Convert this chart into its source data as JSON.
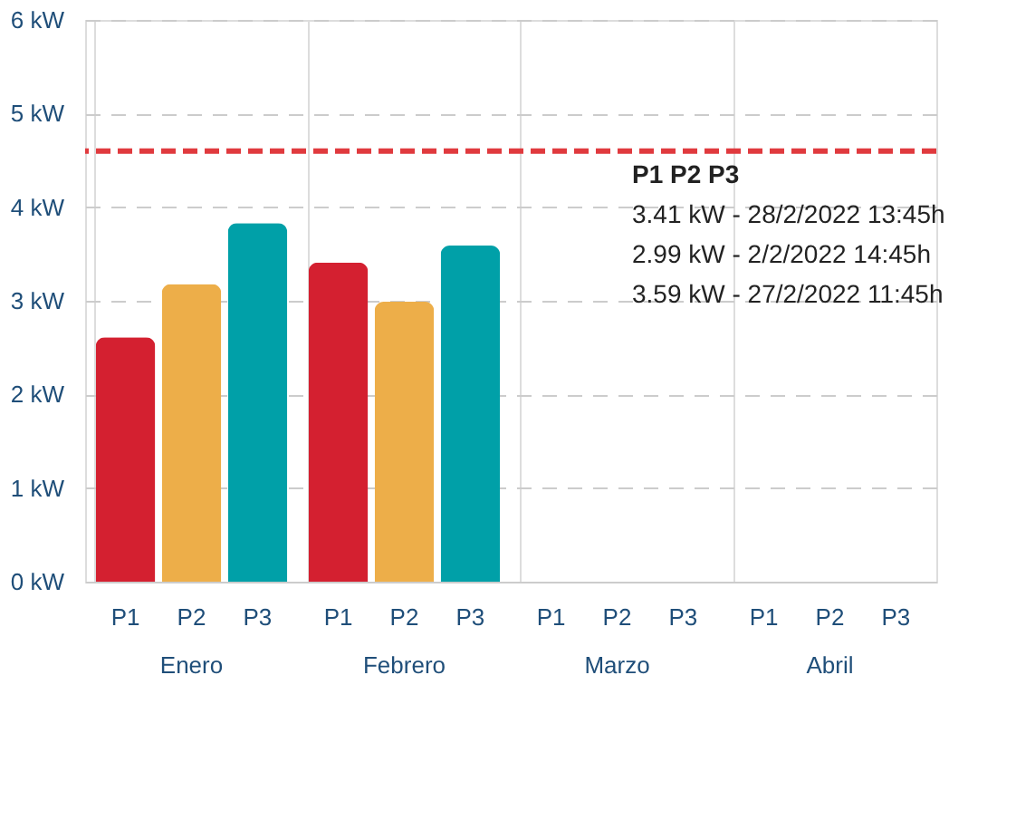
{
  "chart_data": {
    "type": "bar",
    "categories": [
      "Enero",
      "Febrero",
      "Marzo",
      "Abril"
    ],
    "series": [
      {
        "name": "P1",
        "color": "#d42030",
        "values": [
          2.61,
          3.41,
          null,
          null
        ]
      },
      {
        "name": "P2",
        "color": "#edae49",
        "values": [
          3.18,
          2.99,
          null,
          null
        ]
      },
      {
        "name": "P3",
        "color": "#00a0a8",
        "values": [
          3.83,
          3.59,
          null,
          null
        ]
      }
    ],
    "ylim": [
      0,
      6
    ],
    "yticks": [
      {
        "value": 0,
        "label": "0 kW"
      },
      {
        "value": 1,
        "label": "1 kW"
      },
      {
        "value": 2,
        "label": "2 kW"
      },
      {
        "value": 3,
        "label": "3 kW"
      },
      {
        "value": 4,
        "label": "4 kW"
      },
      {
        "value": 5,
        "label": "5 kW"
      },
      {
        "value": 6,
        "label": "6 kW"
      }
    ],
    "ref_lines": [
      {
        "axis": "y",
        "value": 4.6,
        "color": "#e03a3e",
        "line_style": "dashed"
      }
    ],
    "annotations": [
      "P1   P2   P3",
      "3.41 kW - 28/2/2022 13:45h",
      "2.99 kW - 2/2/2022 14:45h",
      "3.59 kW - 27/2/2022 11:45h"
    ],
    "grid": true
  }
}
